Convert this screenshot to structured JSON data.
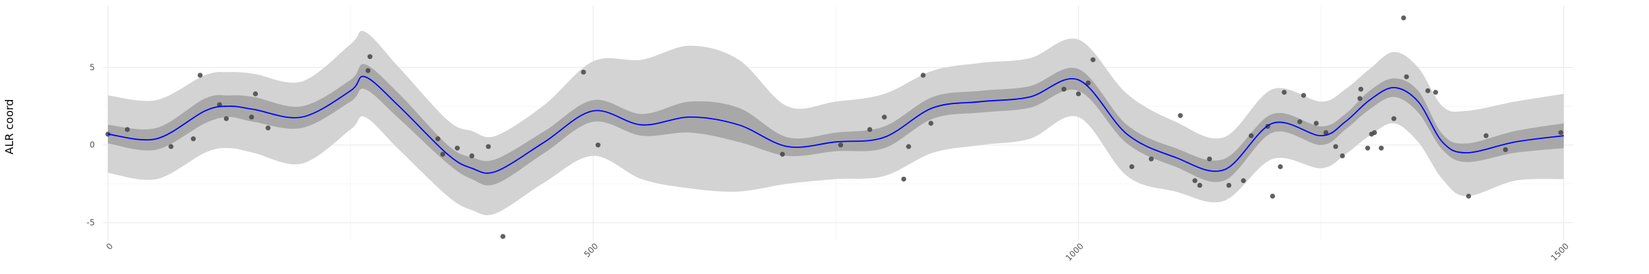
{
  "chart_data": {
    "type": "line",
    "title": "",
    "xlabel": "",
    "ylabel": "ALR coord",
    "xlim": [
      -5,
      1510
    ],
    "ylim": [
      -6.2,
      9
    ],
    "x_ticks": [
      0,
      500,
      1000,
      1500
    ],
    "x_tick_labels": [
      "0",
      "500",
      "1000",
      "1500"
    ],
    "y_ticks": [
      -5,
      0,
      5
    ],
    "y_tick_labels": [
      "-5",
      "0",
      "5"
    ],
    "grid": true,
    "legend": "none",
    "colors": {
      "line": "#0000ff",
      "inner_band": "#a8a8a8",
      "outer_band": "#d3d3d3",
      "points": "#444444",
      "grid": "#ebebeb"
    },
    "series": [
      {
        "type": "line",
        "x": [
          0,
          50,
          100,
          125,
          150,
          200,
          250,
          265,
          300,
          350,
          375,
          400,
          450,
          500,
          550,
          600,
          650,
          700,
          750,
          800,
          850,
          900,
          950,
          1000,
          1050,
          1100,
          1150,
          1200,
          1250,
          1275,
          1300,
          1325,
          1350,
          1375,
          1400,
          1450,
          1500
        ],
        "y": [
          0.7,
          0.4,
          2.2,
          2.5,
          2.3,
          1.8,
          3.5,
          4.4,
          2.5,
          -0.6,
          -1.5,
          -1.7,
          0.2,
          2.2,
          1.3,
          1.8,
          1.3,
          -0.1,
          0.2,
          0.5,
          2.4,
          2.8,
          3.1,
          4.2,
          0.7,
          -0.8,
          -1.6,
          1.4,
          0.6,
          1.5,
          2.9,
          3.7,
          2.8,
          0.2,
          -0.5,
          0.2,
          0.6
        ]
      },
      {
        "type": "band",
        "x": [
          0,
          50,
          100,
          125,
          150,
          200,
          250,
          265,
          300,
          350,
          375,
          400,
          450,
          500,
          550,
          600,
          650,
          700,
          750,
          800,
          850,
          900,
          950,
          1000,
          1050,
          1100,
          1150,
          1200,
          1250,
          1275,
          1300,
          1325,
          1350,
          1375,
          1400,
          1450,
          1500
        ],
        "lower": [
          0.1,
          -0.3,
          1.4,
          1.8,
          1.5,
          1.1,
          2.8,
          3.6,
          1.7,
          -1.2,
          -2.2,
          -2.5,
          -0.5,
          1.5,
          0.6,
          0.8,
          0.2,
          -0.7,
          -0.4,
          -0.2,
          1.7,
          2.1,
          2.4,
          3.5,
          0.1,
          -1.4,
          -2.3,
          0.8,
          0,
          1.0,
          2.3,
          3.1,
          2.1,
          -0.3,
          -1.1,
          -0.5,
          -0.2
        ],
        "upper": [
          1.3,
          1.1,
          3.0,
          3.2,
          3.1,
          2.5,
          4.2,
          5.2,
          3.3,
          0,
          -0.8,
          -0.9,
          0.9,
          2.9,
          2.0,
          2.8,
          2.4,
          0.5,
          0.8,
          1.2,
          3.1,
          3.5,
          3.8,
          4.9,
          1.3,
          -0.2,
          -0.9,
          2.0,
          1.2,
          2.0,
          3.5,
          4.3,
          3.5,
          0.7,
          0.1,
          0.9,
          1.4
        ]
      },
      {
        "type": "band",
        "x": [
          0,
          50,
          100,
          125,
          150,
          200,
          250,
          265,
          300,
          350,
          375,
          400,
          450,
          500,
          550,
          600,
          650,
          700,
          750,
          800,
          850,
          900,
          950,
          1000,
          1050,
          1100,
          1150,
          1200,
          1250,
          1275,
          1300,
          1325,
          1350,
          1375,
          1400,
          1450,
          1500
        ],
        "lower": [
          -1.8,
          -2.2,
          -0.5,
          -0.2,
          -0.5,
          -1.2,
          1.0,
          1.8,
          -0.3,
          -3.3,
          -4.2,
          -4.4,
          -2.4,
          -0.7,
          -2.2,
          -2.8,
          -3.0,
          -2.5,
          -2.2,
          -2.0,
          -0.5,
          0,
          0.4,
          1.8,
          -2.0,
          -3.0,
          -3.6,
          -0.9,
          -1.5,
          -0.6,
          0.6,
          1.4,
          0.2,
          -2.2,
          -3.3,
          -2.3,
          -2.2
        ],
        "upper": [
          3.2,
          2.9,
          4.5,
          4.7,
          4.6,
          4.1,
          6.5,
          7.3,
          5.0,
          1.6,
          0.9,
          0.6,
          2.6,
          5.4,
          5.5,
          6.4,
          5.5,
          2.5,
          2.8,
          3.3,
          4.8,
          5.3,
          5.6,
          6.8,
          3.3,
          1.5,
          0.5,
          3.6,
          2.8,
          3.6,
          4.9,
          6.0,
          5.0,
          2.5,
          2.2,
          2.8,
          3.3
        ]
      },
      {
        "type": "scatter",
        "x": [
          0,
          20,
          65,
          88,
          95,
          115,
          122,
          148,
          152,
          165,
          268,
          270,
          340,
          345,
          360,
          375,
          392,
          407,
          490,
          505,
          695,
          755,
          785,
          800,
          820,
          825,
          840,
          848,
          985,
          1000,
          1010,
          1015,
          1055,
          1075,
          1105,
          1120,
          1125,
          1135,
          1155,
          1170,
          1178,
          1195,
          1200,
          1208,
          1212,
          1228,
          1232,
          1245,
          1255,
          1265,
          1272,
          1290,
          1291,
          1298,
          1302,
          1305,
          1312,
          1325,
          1335,
          1338,
          1360,
          1368,
          1402,
          1420,
          1440,
          1497
        ],
        "y": [
          0.7,
          1.0,
          -0.1,
          0.4,
          4.5,
          2.6,
          1.7,
          1.8,
          3.3,
          1.1,
          4.8,
          5.7,
          0.4,
          -0.6,
          -0.2,
          -0.7,
          -0.1,
          -5.9,
          4.7,
          0.0,
          -0.6,
          0.0,
          1.0,
          1.8,
          -2.2,
          -0.1,
          4.5,
          1.4,
          3.6,
          3.3,
          4.0,
          5.5,
          -1.4,
          -0.9,
          1.9,
          -2.3,
          -2.6,
          -0.9,
          -2.6,
          -2.3,
          0.6,
          1.2,
          -3.3,
          -1.4,
          3.4,
          1.5,
          3.2,
          1.4,
          0.8,
          -0.1,
          -0.7,
          3.0,
          3.6,
          -0.2,
          0.7,
          0.8,
          -0.2,
          1.7,
          8.2,
          4.4,
          3.5,
          3.4,
          -3.3,
          0.6,
          -0.3,
          0.8
        ]
      }
    ]
  }
}
